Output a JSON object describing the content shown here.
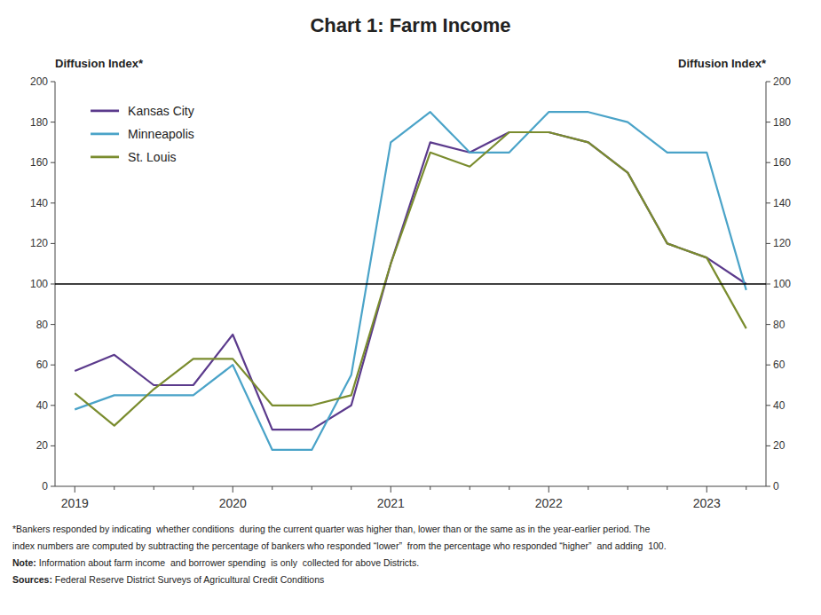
{
  "chart_data": {
    "type": "line",
    "title": "Chart 1: Farm Income",
    "ylabel": "Diffusion Index*",
    "y2label": "Diffusion Index*",
    "categories": [
      "2019",
      null,
      null,
      null,
      "2020",
      null,
      null,
      null,
      "2021",
      null,
      null,
      null,
      "2022",
      null,
      null,
      null,
      "2023",
      null
    ],
    "series": [
      {
        "name": "Kansas City",
        "color": "#5b3a8c",
        "values": [
          57,
          65,
          50,
          50,
          75,
          28,
          28,
          40,
          110,
          170,
          165,
          175,
          175,
          170,
          155,
          120,
          113,
          100
        ]
      },
      {
        "name": "Minneapolis",
        "color": "#4aa3c8",
        "values": [
          38,
          45,
          45,
          45,
          60,
          18,
          18,
          55,
          170,
          185,
          165,
          165,
          185,
          185,
          180,
          165,
          165,
          97
        ]
      },
      {
        "name": "St. Louis",
        "color": "#7a8c2e",
        "values": [
          46,
          30,
          48,
          63,
          63,
          40,
          40,
          45,
          110,
          165,
          158,
          175,
          175,
          170,
          155,
          120,
          113,
          78
        ]
      }
    ],
    "hline": 100,
    "ylim": [
      0,
      200
    ],
    "yticks": [
      0,
      20,
      40,
      60,
      80,
      100,
      120,
      140,
      160,
      180,
      200
    ],
    "y2lim": [
      0,
      200
    ],
    "y2ticks": [
      0,
      20,
      40,
      60,
      80,
      100,
      120,
      140,
      160,
      180,
      200
    ],
    "grid": false,
    "legend": "upper left",
    "footnotes": [
      "*Bankers responded by indicating  whether conditions  during the current quarter was higher than, lower than or the same as in the year-earlier period. The",
      "index numbers are computed by subtracting the percentage of bankers who responded “lower”  from the percentage who responded “higher”  and adding  100."
    ],
    "note": {
      "label": "Note:",
      "text": " Information about farm income  and borrower spending  is only  collected for above Districts."
    },
    "source": {
      "label": "Sources:",
      "text": " Federal Reserve District Surveys of Agricultural Credit Conditions"
    }
  }
}
